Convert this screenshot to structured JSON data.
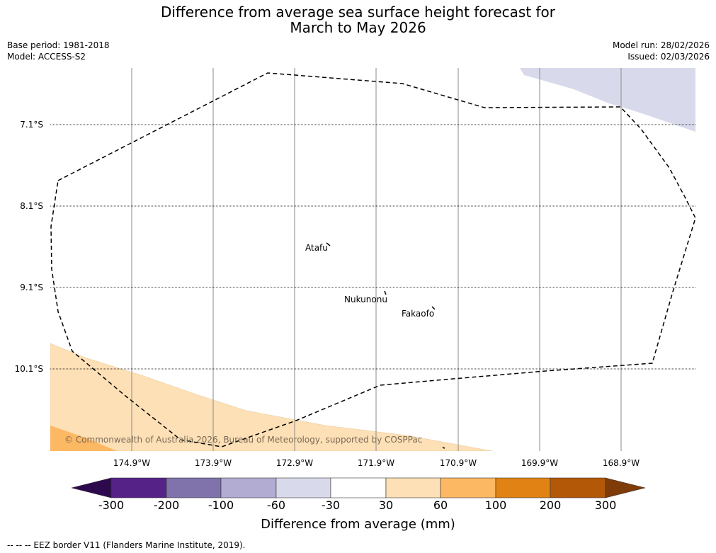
{
  "header": {
    "title_line1": "Difference from average sea surface height forecast for",
    "title_line2": "March to May 2026",
    "base_period": "Base period: 1981-2018",
    "model": "Model: ACCESS-S2",
    "model_run": "Model run: 28/02/2026",
    "issued": "Issued: 02/03/2026"
  },
  "map": {
    "latitude_labels": [
      "7.1°S",
      "8.1°S",
      "9.1°S",
      "10.1°S"
    ],
    "longitude_labels": [
      "174.9°W",
      "173.9°W",
      "172.9°W",
      "171.9°W",
      "170.9°W",
      "169.9°W",
      "168.9°W"
    ],
    "places": [
      {
        "name": "Atafu"
      },
      {
        "name": "Nukunonu"
      },
      {
        "name": "Fakaofo"
      }
    ],
    "copyright": "© Commonwealth of Australia 2026, Bureau of Meteorology, supported by COSPPac"
  },
  "colorbar": {
    "ticks": [
      "-300",
      "-200",
      "-100",
      "-60",
      "-30",
      "30",
      "60",
      "100",
      "200",
      "300"
    ],
    "colors": [
      "#2d0a4e",
      "#552288",
      "#8073ac",
      "#b2abd2",
      "#d8daeb",
      "#ffffff",
      "#fee0b6",
      "#fdb863",
      "#e08214",
      "#b35806",
      "#7f3b08"
    ],
    "label": "Difference from average (mm)"
  },
  "footnote": "--  --  -- EEZ border V11 (Flanders Marine Institute, 2019)."
}
